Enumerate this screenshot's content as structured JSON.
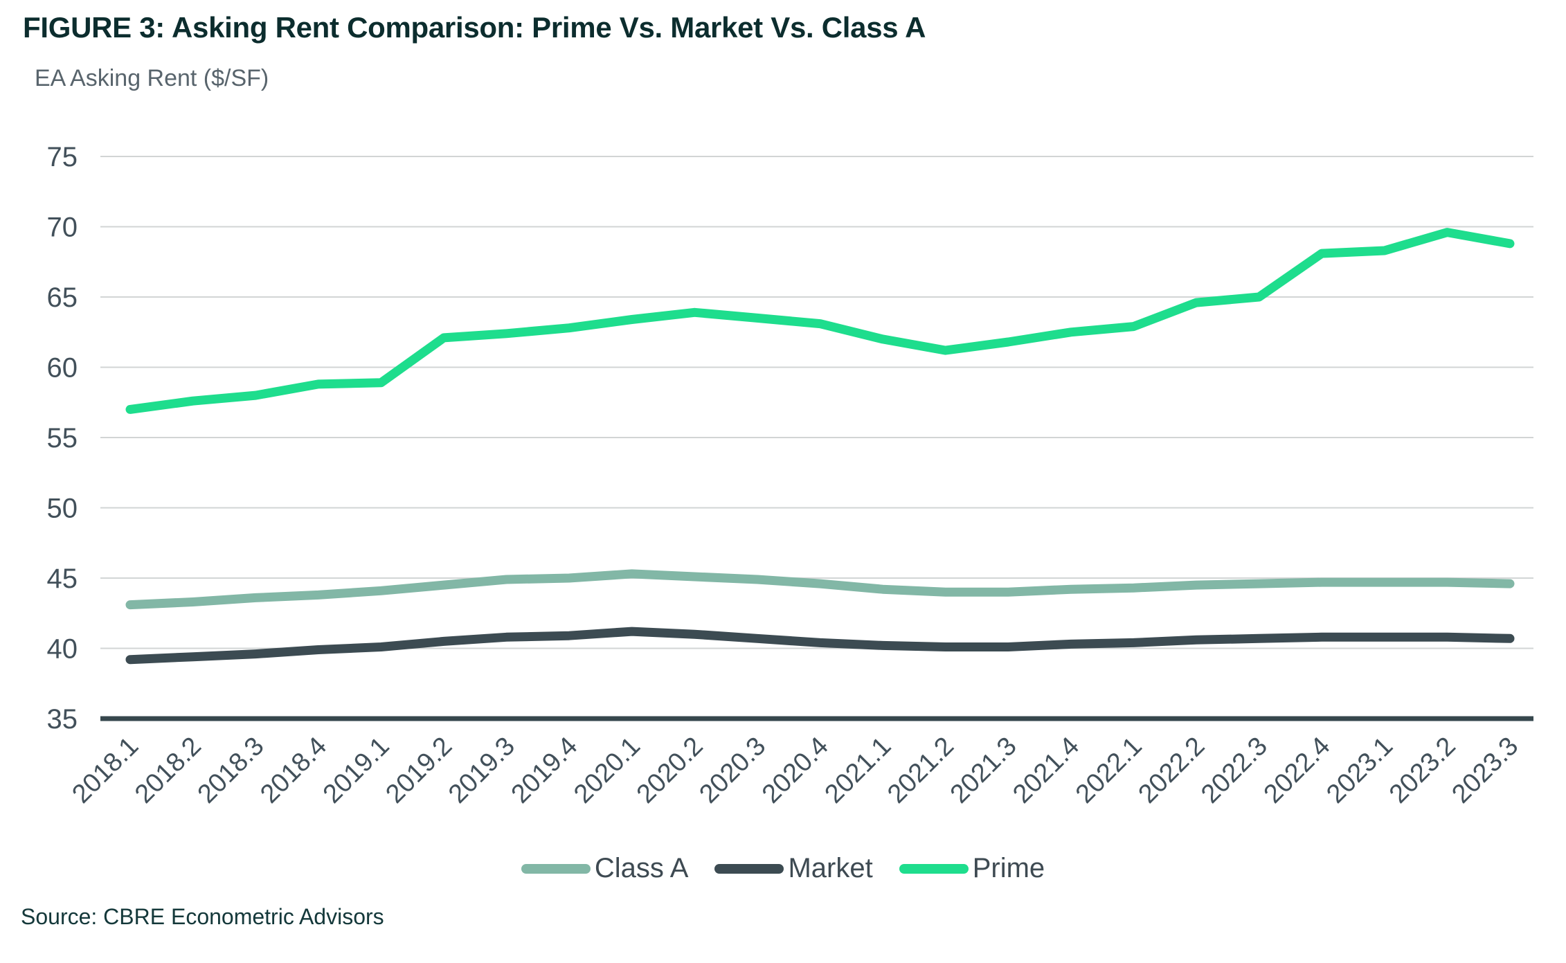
{
  "header": {
    "figure_label": "FIGURE 3:",
    "title": "Asking Rent Comparison: Prime Vs. Market Vs. Class A",
    "subtitle": "EA Asking Rent ($/SF)"
  },
  "chart_data": {
    "type": "line",
    "title": "FIGURE 3: Asking Rent Comparison: Prime Vs. Market Vs. Class A",
    "ylabel": "EA Asking Rent ($/SF)",
    "xlabel": "",
    "grid": "horizontal",
    "legend_position": "bottom",
    "ylim": [
      35,
      75
    ],
    "yticks": [
      35,
      40,
      45,
      50,
      55,
      60,
      65,
      70,
      75
    ],
    "categories": [
      "2018.1",
      "2018.2",
      "2018.3",
      "2018.4",
      "2019.1",
      "2019.2",
      "2019.3",
      "2019.4",
      "2020.1",
      "2020.2",
      "2020.3",
      "2020.4",
      "2021.1",
      "2021.2",
      "2021.3",
      "2021.4",
      "2022.1",
      "2022.2",
      "2022.3",
      "2022.4",
      "2023.1",
      "2023.2",
      "2023.3"
    ],
    "series": [
      {
        "name": "Class A",
        "color": "#82B7A6",
        "values": [
          43.1,
          43.3,
          43.6,
          43.8,
          44.1,
          44.5,
          44.9,
          45.0,
          45.3,
          45.1,
          44.9,
          44.6,
          44.2,
          44.0,
          44.0,
          44.2,
          44.3,
          44.5,
          44.6,
          44.7,
          44.7,
          44.7,
          44.6
        ]
      },
      {
        "name": "Market",
        "color": "#3C4B52",
        "values": [
          39.2,
          39.4,
          39.6,
          39.9,
          40.1,
          40.5,
          40.8,
          40.9,
          41.2,
          41.0,
          40.7,
          40.4,
          40.2,
          40.1,
          40.1,
          40.3,
          40.4,
          40.6,
          40.7,
          40.8,
          40.8,
          40.8,
          40.7
        ]
      },
      {
        "name": "Prime",
        "color": "#1EDD8D",
        "values": [
          57.0,
          57.6,
          58.0,
          58.8,
          58.9,
          62.1,
          62.4,
          62.8,
          63.4,
          63.9,
          63.5,
          63.1,
          62.0,
          61.2,
          61.8,
          62.5,
          62.9,
          64.6,
          65.0,
          68.1,
          68.3,
          69.6,
          68.8
        ]
      }
    ]
  },
  "footer": {
    "source": "Source: CBRE Econometric Advisors"
  },
  "colors": {
    "background": "#FFFFFF",
    "grid": "#D2D5D5",
    "axis_line": "#36474D",
    "tick_text": "#42505A",
    "title_text": "#0C2D2E",
    "subtitle_text": "#58646C",
    "legend_text": "#3E4A52",
    "source_text": "#14383A"
  }
}
